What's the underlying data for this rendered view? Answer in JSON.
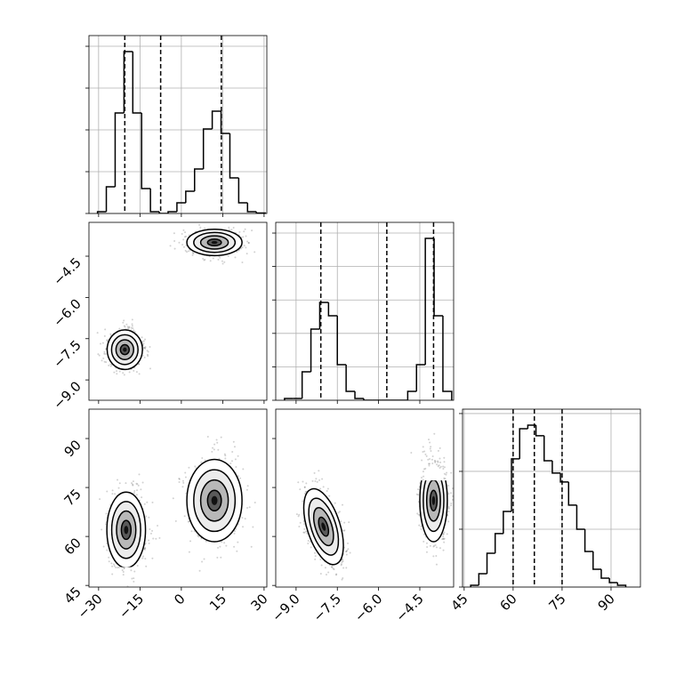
{
  "chart_data": [
    {
      "type": "histogram",
      "bins": [
        -30.4,
        -27.2,
        -24,
        -20.8,
        -17.6,
        -14.4,
        -11.2,
        -8,
        -4.8,
        -1.6,
        1.6,
        4.8,
        8,
        11.2,
        14.4,
        17.6,
        20.8,
        24,
        27.2,
        30.4
      ],
      "counts": [
        21,
        319,
        1202,
        1936,
        1202,
        298,
        21,
        0,
        21,
        128,
        266,
        532,
        1011,
        1223,
        957,
        426,
        128,
        21,
        5
      ],
      "color": "#000000",
      "vlines": [
        -20.5,
        -7.5,
        14.5
      ],
      "xlim": [
        -33.5,
        31
      ],
      "xticks": [
        {
          "value": -30,
          "label": "−30"
        },
        {
          "value": -15,
          "label": "−15"
        },
        0,
        15,
        30
      ],
      "ylim": [
        0,
        2128
      ],
      "yticks": [
        0,
        500,
        1000,
        1500,
        2000
      ],
      "grid": true
    },
    {
      "type": "density",
      "xlim": [
        -33.5,
        31
      ],
      "xticks": [
        {
          "value": -30,
          "label": "−30"
        },
        {
          "value": -15,
          "label": "−15"
        },
        0,
        15,
        30
      ],
      "ylim": [
        -9.74,
        -3.27
      ],
      "yticks": [
        {
          "value": -9,
          "label": "−9.0"
        },
        {
          "value": -7.5,
          "label": "−7.5"
        },
        {
          "value": -6,
          "label": "−6.0"
        },
        {
          "value": -4.5,
          "label": "−4.5"
        }
      ],
      "clusters": [
        {
          "center": [
            -20.5,
            -7.9
          ],
          "sd": [
            3.2,
            0.36
          ],
          "rho": 0
        },
        {
          "center": [
            12,
            -4.0
          ],
          "sd": [
            5.0,
            0.24
          ],
          "rho": 0
        }
      ],
      "grid": false
    },
    {
      "type": "histogram",
      "bins": [
        -9.42,
        -9.1,
        -8.78,
        -8.46,
        -8.14,
        -7.82,
        -7.5,
        -7.18,
        -6.86,
        -6.54,
        -6.22,
        -5.9,
        -5.58,
        -5.26,
        -4.94,
        -4.62,
        -4.3,
        -3.98,
        -3.66,
        -3.34
      ],
      "counts": [
        27,
        27,
        426,
        1064,
        1463,
        1263,
        532,
        133,
        27,
        0,
        0,
        0,
        0,
        0,
        133,
        532,
        2420,
        1263,
        133
      ],
      "color": "#000000",
      "vlines": [
        -8.1,
        -5.7,
        -4.0
      ],
      "xlim": [
        -9.74,
        -3.27
      ],
      "xticks": [
        {
          "value": -9,
          "label": "−9.0"
        },
        {
          "value": -7.5,
          "label": "−7.5"
        },
        {
          "value": -6,
          "label": "−6.0"
        },
        {
          "value": -4.5,
          "label": "−4.5"
        }
      ],
      "ylim": [
        0,
        2660
      ],
      "yticks": [
        0,
        500,
        1000,
        1500,
        2000,
        2500
      ],
      "grid": true
    },
    {
      "type": "density",
      "xlim": [
        -33.5,
        31
      ],
      "xticks": [
        {
          "value": -30,
          "label": "−30"
        },
        {
          "value": -15,
          "label": "−15"
        },
        0,
        15,
        30
      ],
      "ylim": [
        44.5,
        99
      ],
      "yticks": [
        45,
        60,
        75,
        90
      ],
      "clusters": [
        {
          "center": [
            -20,
            62
          ],
          "sd": [
            3.5,
            5.8
          ],
          "rho": 0
        },
        {
          "center": [
            12,
            71
          ],
          "sd": [
            5.0,
            6.3
          ],
          "rho": 0
        }
      ],
      "grid": false
    },
    {
      "type": "density",
      "xlim": [
        -9.74,
        -3.27
      ],
      "xticks": [
        {
          "value": -9,
          "label": "−9.0"
        },
        {
          "value": -7.5,
          "label": "−7.5"
        },
        {
          "value": -6,
          "label": "−6.0"
        },
        {
          "value": -4.5,
          "label": "−4.5"
        }
      ],
      "ylim": [
        44.5,
        99
      ],
      "yticks": [
        45,
        60,
        75,
        90
      ],
      "clusters": [
        {
          "center": [
            -8,
            63
          ],
          "sd": [
            0.36,
            5.8
          ],
          "rho": -0.5
        },
        {
          "center": [
            -4.0,
            71
          ],
          "sd": [
            0.25,
            6.3
          ],
          "rho": 0
        }
      ],
      "grid": false
    },
    {
      "type": "histogram",
      "bins": [
        47,
        49.5,
        52,
        54.5,
        57,
        59.5,
        62,
        64.5,
        67,
        69.5,
        72,
        74.5,
        77,
        79.5,
        82,
        84.5,
        87,
        89.5,
        92,
        94.5
      ],
      "counts": [
        15,
        115,
        292,
        462,
        654,
        1108,
        1369,
        1400,
        1308,
        1092,
        985,
        908,
        708,
        500,
        308,
        154,
        77,
        38,
        15
      ],
      "color": "#000000",
      "vlines": [
        60,
        66.5,
        75
      ],
      "xlim": [
        44.5,
        99
      ],
      "xticks": [
        45,
        60,
        75,
        90
      ],
      "ylim": [
        0,
        1538
      ],
      "yticks": [
        0,
        500,
        1000,
        1500
      ],
      "grid": true
    }
  ]
}
